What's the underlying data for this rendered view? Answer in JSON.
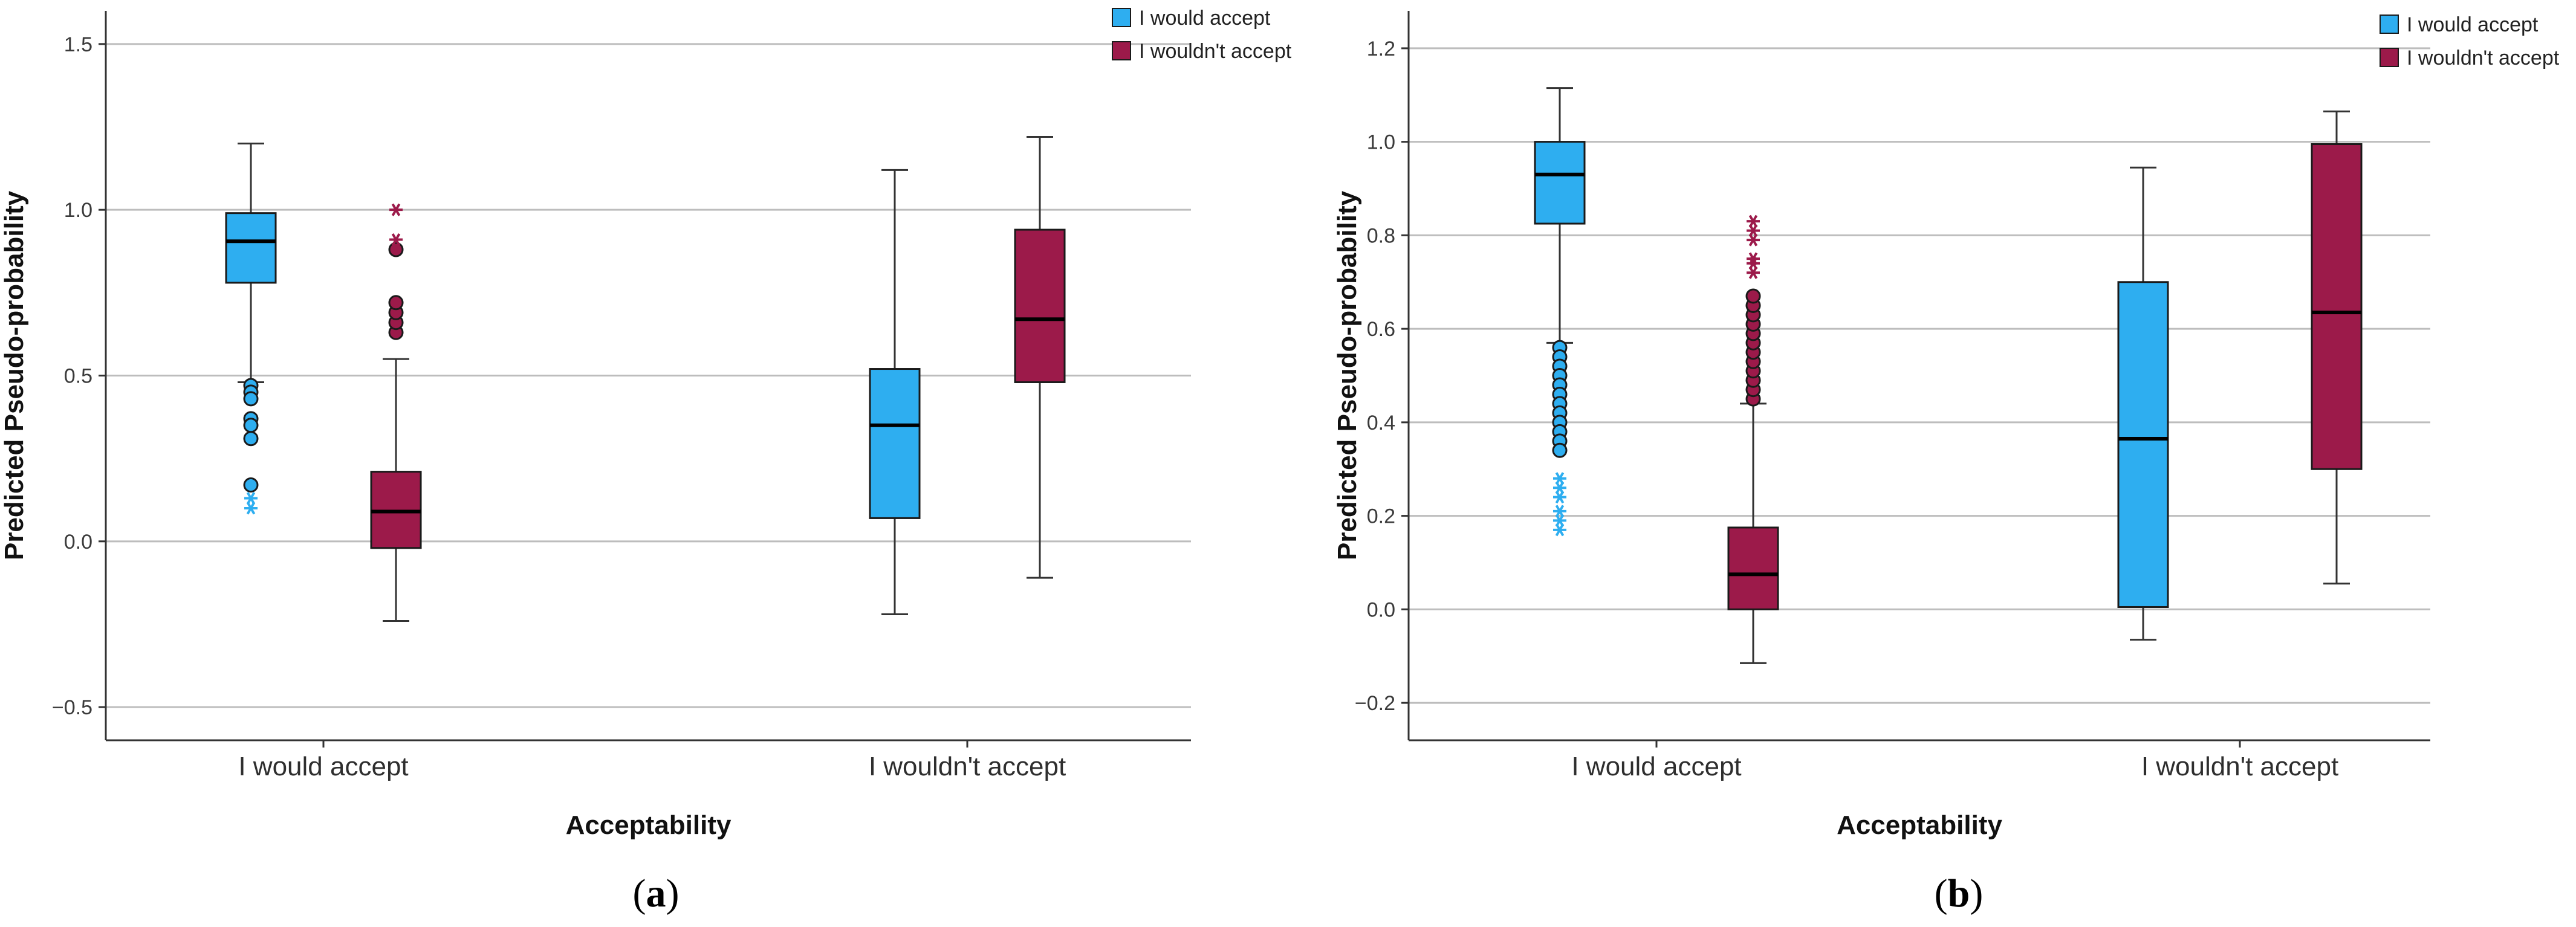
{
  "chart_data": [
    {
      "type": "boxplot",
      "panel_label": "a",
      "xlabel": "Acceptability",
      "ylabel": "Predicted Pseudo-probability",
      "ylim": [
        -0.6,
        1.6
      ],
      "y_ticks": [
        -0.5,
        0.0,
        0.5,
        1.0,
        1.5
      ],
      "y_tick_labels": [
        "−0.5",
        "0.0",
        "0.5",
        "1.0",
        "1.5"
      ],
      "grid": true,
      "legend_position": "top-right",
      "categories": [
        "I would accept",
        "I wouldn't accept"
      ],
      "series": [
        {
          "name": "I would accept",
          "color": "#2eaef0",
          "boxes": [
            {
              "category": "I would accept",
              "whisker_low": 0.48,
              "q1": 0.78,
              "median": 0.905,
              "q3": 0.99,
              "whisker_high": 1.2,
              "outliers": [
                0.47,
                0.45,
                0.43,
                0.37,
                0.35,
                0.31,
                0.17
              ],
              "extremes": [
                0.13,
                0.1
              ]
            },
            {
              "category": "I wouldn't accept",
              "whisker_low": -0.22,
              "q1": 0.07,
              "median": 0.35,
              "q3": 0.52,
              "whisker_high": 1.12,
              "outliers": [],
              "extremes": []
            }
          ]
        },
        {
          "name": "I wouldn't accept",
          "color": "#9c1a4a",
          "boxes": [
            {
              "category": "I would accept",
              "whisker_low": -0.24,
              "q1": -0.02,
              "median": 0.09,
              "q3": 0.21,
              "whisker_high": 0.55,
              "outliers": [
                0.63,
                0.66,
                0.69,
                0.72,
                0.88
              ],
              "extremes": [
                1.0,
                0.91
              ]
            },
            {
              "category": "I wouldn't accept",
              "whisker_low": -0.11,
              "q1": 0.48,
              "median": 0.67,
              "q3": 0.94,
              "whisker_high": 1.22,
              "outliers": [],
              "extremes": []
            }
          ]
        }
      ]
    },
    {
      "type": "boxplot",
      "panel_label": "b",
      "xlabel": "Acceptability",
      "ylabel": "Predicted Pseudo-probability",
      "ylim": [
        -0.28,
        1.28
      ],
      "y_ticks": [
        -0.2,
        0.0,
        0.2,
        0.4,
        0.6,
        0.8,
        1.0,
        1.2
      ],
      "y_tick_labels": [
        "−0.2",
        "0.0",
        "0.2",
        "0.4",
        "0.6",
        "0.8",
        "1.0",
        "1.2"
      ],
      "grid": true,
      "legend_position": "top-right",
      "categories": [
        "I would accept",
        "I wouldn't accept"
      ],
      "series": [
        {
          "name": "I would accept",
          "color": "#2eaef0",
          "boxes": [
            {
              "category": "I would accept",
              "whisker_low": 0.57,
              "q1": 0.825,
              "median": 0.93,
              "q3": 1.0,
              "whisker_high": 1.115,
              "outliers": [
                0.56,
                0.54,
                0.52,
                0.5,
                0.48,
                0.46,
                0.44,
                0.42,
                0.4,
                0.38,
                0.36,
                0.34
              ],
              "extremes": [
                0.28,
                0.26,
                0.24,
                0.21,
                0.19,
                0.17
              ]
            },
            {
              "category": "I wouldn't accept",
              "whisker_low": -0.065,
              "q1": 0.005,
              "median": 0.365,
              "q3": 0.7,
              "whisker_high": 0.945,
              "outliers": [],
              "extremes": []
            }
          ]
        },
        {
          "name": "I wouldn't accept",
          "color": "#9c1a4a",
          "boxes": [
            {
              "category": "I would accept",
              "whisker_low": -0.115,
              "q1": 0.0,
              "median": 0.075,
              "q3": 0.175,
              "whisker_high": 0.44,
              "outliers": [
                0.45,
                0.47,
                0.49,
                0.51,
                0.53,
                0.55,
                0.57,
                0.59,
                0.61,
                0.63,
                0.65,
                0.67
              ],
              "extremes": [
                0.72,
                0.74,
                0.75,
                0.79,
                0.81,
                0.83
              ]
            },
            {
              "category": "I wouldn't accept",
              "whisker_low": 0.055,
              "q1": 0.3,
              "median": 0.635,
              "q3": 0.995,
              "whisker_high": 1.065,
              "outliers": [],
              "extremes": []
            }
          ]
        }
      ]
    }
  ]
}
